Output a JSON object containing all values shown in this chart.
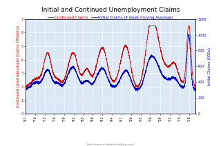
{
  "title": "Initial and Continued Unemployment Claims",
  "legend_continued": "Continued Claims",
  "legend_initial": "Initial Claims (4 week moving Average)",
  "ylabel_left": "Continued Unemployment Claims (Millions)",
  "ylabel_right": "Initial Claims (000s)",
  "xlabel_url": "http://www.calculatedriskblog.com/",
  "ylim_left": [
    0.0,
    7.0
  ],
  "ylim_right": [
    0,
    1200
  ],
  "yticks_left": [
    0.0,
    1.0,
    2.0,
    3.0,
    4.0,
    5.0,
    6.0,
    7.0
  ],
  "yticks_right": [
    0,
    200,
    400,
    600,
    800,
    1000,
    1200
  ],
  "bg_color": "#dce9f5",
  "grid_color": "#ffffff",
  "line_color_continued": "#cc0000",
  "line_color_initial": "#0000cc",
  "title_fontsize": 6.5,
  "label_fontsize": 4.0,
  "tick_fontsize": 3.5,
  "legend_fontsize": 4.0,
  "year_start": 1967,
  "year_end": 2020,
  "year_step": 3,
  "n_points": 2800
}
